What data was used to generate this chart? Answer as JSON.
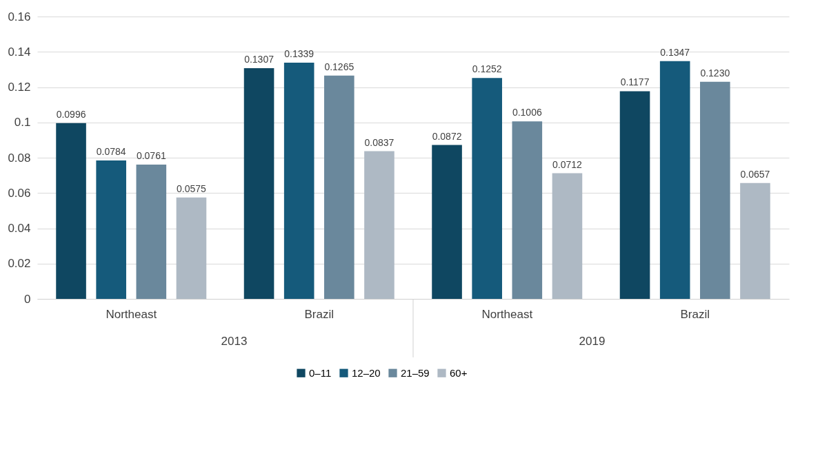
{
  "chart_data": {
    "type": "bar",
    "categories": [
      "Northeast",
      "Brazil",
      "Northeast",
      "Brazil"
    ],
    "annotations": [
      "2013",
      "2019"
    ],
    "series": [
      {
        "name": "0–11",
        "color": "#0f4761",
        "values": [
          0.0996,
          0.1307,
          0.0872,
          0.1177
        ],
        "value_labels": [
          "0.0996",
          "0.1307",
          "0.0872",
          "0.1177"
        ]
      },
      {
        "name": "12–20",
        "color": "#155a7b",
        "values": [
          0.0784,
          0.1339,
          0.1252,
          0.1347
        ],
        "value_labels": [
          "0.0784",
          "0.1339",
          "0.1252",
          "0.1347"
        ]
      },
      {
        "name": "21–59",
        "color": "#6a889c",
        "values": [
          0.0761,
          0.1265,
          0.1006,
          0.123
        ],
        "value_labels": [
          "0.0761",
          "0.1265",
          "0.1006",
          "0.1230"
        ]
      },
      {
        "name": "60+",
        "color": "#aeb9c4",
        "values": [
          0.0575,
          0.0837,
          0.0712,
          0.0657
        ],
        "value_labels": [
          "0.0575",
          "0.0837",
          "0.0712",
          "0.0657"
        ]
      }
    ],
    "ylim": [
      0,
      0.16
    ],
    "yticks": [
      0,
      0.02,
      0.04,
      0.06,
      0.08,
      0.1,
      0.12,
      0.14,
      0.16
    ],
    "grid": "y",
    "legend": "bottom"
  }
}
